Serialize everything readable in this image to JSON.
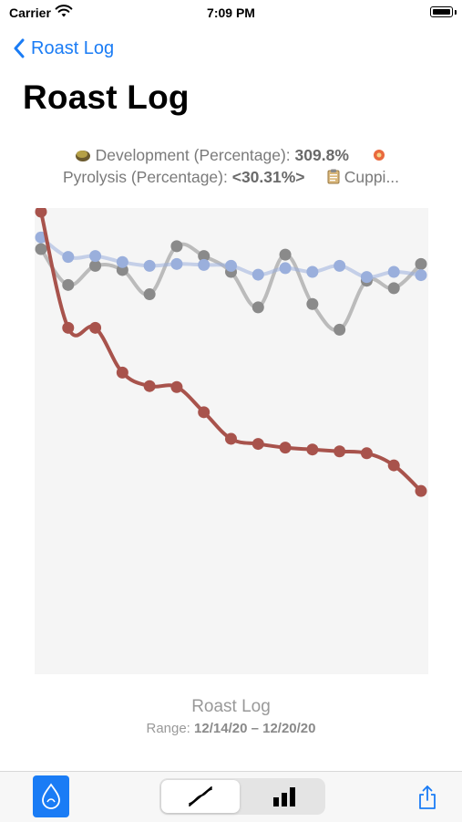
{
  "status_bar": {
    "carrier": "Carrier",
    "time": "7:09 PM"
  },
  "nav": {
    "back_label": "Roast Log"
  },
  "title": "Roast Log",
  "legend": {
    "development_label": "Development (Percentage):",
    "development_value": "309.8%",
    "pyrolysis_label": "Pyrolysis (Percentage):",
    "pyrolysis_value": "<30.31%>",
    "cupping_label": "Cuppi..."
  },
  "chart_data": {
    "type": "line",
    "x": [
      1,
      2,
      3,
      4,
      5,
      6,
      7,
      8,
      9,
      10,
      11,
      12,
      13,
      14,
      15
    ],
    "ylim": [
      0,
      100
    ],
    "series": [
      {
        "key": "development",
        "color": "#a8534c",
        "values": [
          99.2,
          74.3,
          74.3,
          64.7,
          61.8,
          61.6,
          56.2,
          50.5,
          49.4,
          48.6,
          48.2,
          47.8,
          47.4,
          44.8,
          39.3
        ]
      },
      {
        "key": "pyrolysis",
        "color": "#9aafdc",
        "values": [
          93.7,
          89.5,
          89.7,
          88.4,
          87.6,
          88.0,
          87.8,
          87.6,
          85.7,
          87.1,
          86.3,
          87.6,
          85.2,
          86.3,
          85.6
        ]
      },
      {
        "key": "cupping",
        "color": "#8a8a8a",
        "values": [
          91.2,
          83.5,
          87.6,
          86.7,
          81.5,
          91.8,
          89.7,
          86.3,
          78.7,
          90.0,
          79.4,
          73.9,
          84.4,
          82.8,
          88.0
        ]
      }
    ]
  },
  "caption": {
    "title": "Roast Log",
    "range_label": "Range:",
    "range_value": "12/14/20 – 12/20/20"
  },
  "toolbar": {
    "segments": [
      "line-chart-icon",
      "bar-chart-icon"
    ],
    "selected_segment": "line-chart-icon"
  }
}
